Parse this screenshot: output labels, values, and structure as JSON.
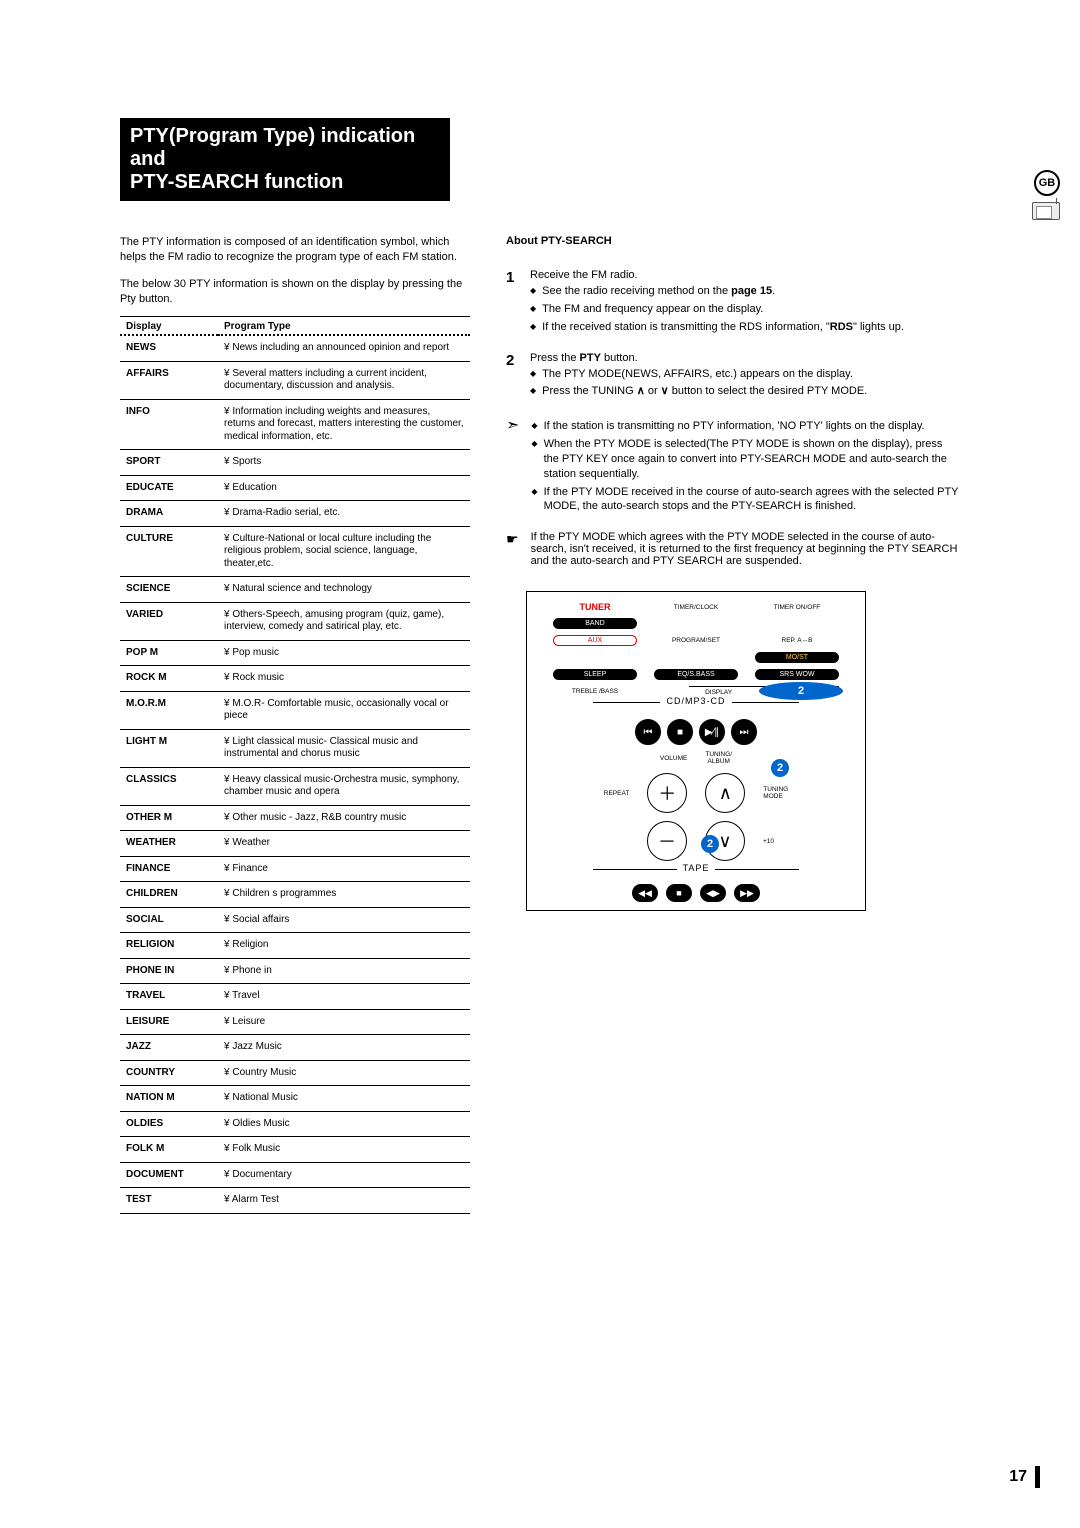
{
  "title_line1": "PTY(Program Type) indication and",
  "title_line2": "PTY-SEARCH function",
  "gb_label": "GB",
  "intro1": "The PTY information is composed of an identification symbol, which helps the FM radio to recognize the program type of each FM station.",
  "intro2": "The below 30 PTY information is shown on the display by pressing the Pty button.",
  "table": {
    "head_display": "Display",
    "head_type": "Program Type",
    "rows": [
      {
        "d": "NEWS",
        "t": "News including an announced opinion and report"
      },
      {
        "d": "AFFAIRS",
        "t": "Several matters including a current incident, documentary, discussion and analysis."
      },
      {
        "d": "INFO",
        "t": "Information including weights and measures, returns and forecast, matters interesting the customer, medical information, etc."
      },
      {
        "d": "SPORT",
        "t": "Sports"
      },
      {
        "d": "EDUCATE",
        "t": "Education"
      },
      {
        "d": "DRAMA",
        "t": "Drama-Radio serial, etc."
      },
      {
        "d": "CULTURE",
        "t": "Culture-National or local culture including the religious problem, social science, language, theater,etc."
      },
      {
        "d": "SCIENCE",
        "t": "Natural science and technology"
      },
      {
        "d": "VARIED",
        "t": "Others-Speech, amusing program (quiz, game), interview, comedy and satirical play, etc."
      },
      {
        "d": "POP M",
        "t": "Pop music"
      },
      {
        "d": "ROCK M",
        "t": "Rock music"
      },
      {
        "d": "M.O.R.M",
        "t": "M.O.R- Comfortable music, occasionally vocal or piece"
      },
      {
        "d": "LIGHT M",
        "t": "Light classical music- Classical music and instrumental and chorus music"
      },
      {
        "d": "CLASSICS",
        "t": "Heavy classical  music-Orchestra music, symphony, chamber music and opera"
      },
      {
        "d": "OTHER M",
        "t": "Other music - Jazz, R&B country music"
      },
      {
        "d": "WEATHER",
        "t": "Weather"
      },
      {
        "d": "FINANCE",
        "t": "Finance"
      },
      {
        "d": "CHILDREN",
        "t": "Children s programmes"
      },
      {
        "d": "SOCIAL",
        "t": "Social affairs"
      },
      {
        "d": "RELIGION",
        "t": "Religion"
      },
      {
        "d": "PHONE IN",
        "t": "Phone in"
      },
      {
        "d": "TRAVEL",
        "t": "Travel"
      },
      {
        "d": "LEISURE",
        "t": "Leisure"
      },
      {
        "d": "JAZZ",
        "t": "Jazz Music"
      },
      {
        "d": "COUNTRY",
        "t": "Country Music"
      },
      {
        "d": "NATION  M",
        "t": "National Music"
      },
      {
        "d": "OLDIES",
        "t": "Oldies Music"
      },
      {
        "d": "FOLK M",
        "t": "Folk Music"
      },
      {
        "d": "DOCUMENT",
        "t": "Documentary"
      },
      {
        "d": "TEST",
        "t": "Alarm Test"
      }
    ]
  },
  "about_heading": "About PTY-SEARCH",
  "step1": {
    "num": "1",
    "line": "Receive the FM radio.",
    "b1a": "See the radio receiving method on the ",
    "b1b": "page 15",
    "b1c": ".",
    "b2": "The FM and frequency appear on the display.",
    "b3a": "If the received station is transmitting the RDS information, \"",
    "b3b": "RDS",
    "b3c": "\" lights up."
  },
  "step2": {
    "num": "2",
    "linea": "Press the ",
    "lineb": "PTY",
    "linec": " button.",
    "b1": "The PTY MODE(NEWS, AFFAIRS, etc.) appears on the display.",
    "b2a": "Press the TUNING ",
    "b2b": " or ",
    "b2c": " button to select the desired PTY MODE."
  },
  "note": {
    "b1": "If the station is transmitting no PTY information, 'NO PTY' lights on the display.",
    "b2": "When the PTY MODE is selected(The PTY MODE is shown on the display), press the PTY KEY once again to convert into PTY-SEARCH MODE and auto-search the station sequentially.",
    "b3": "If the PTY MODE received in the course of auto-search agrees with the selected PTY MODE, the auto-search stops and the PTY-SEARCH is finished."
  },
  "hand_note": "If the PTY MODE which agrees with the PTY MODE selected in the course of auto-search, isn't received, it is returned to the first frequency at beginning the PTY SEARCH and the auto-search and PTY SEARCH are suspended.",
  "remote": {
    "tuner": "TUNER",
    "timerclock": "TIMER/CLOCK",
    "timeronoff": "TIMER ON/OFF",
    "band": "BAND",
    "aux": "AUX",
    "programset": "PROGRAM/SET",
    "repab": "REP. A↔B",
    "most": "MO/ST",
    "sleep": "SLEEP",
    "eqsbass": "EQ/S.BASS",
    "srswow": "SRS WOW",
    "treble": "TREBLE /BASS",
    "display": "DISPLAY",
    "rds": "RDS",
    "pty": "PTY",
    "cdmp3": "CD/MP3-CD",
    "volume": "VOLUME",
    "tuningalbum": "TUNING/\nALBUM",
    "repeat": "REPEAT",
    "tuningmode": "TUNING\nMODE",
    "plus10": "+10",
    "tape": "TAPE",
    "badge": "2"
  },
  "page_number": "17"
}
